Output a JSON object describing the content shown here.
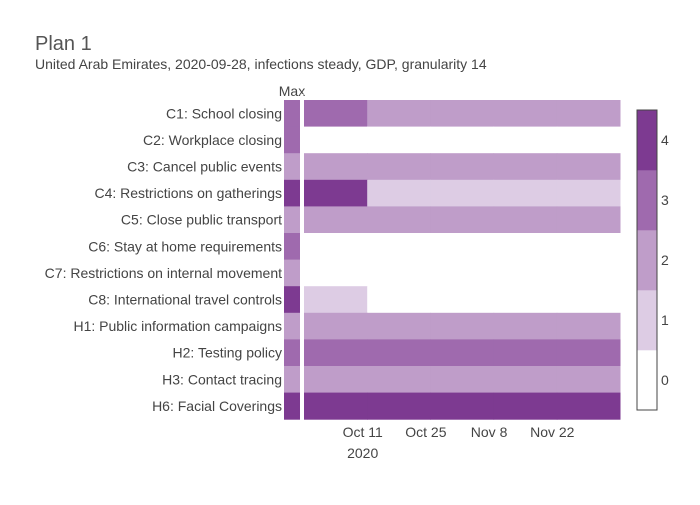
{
  "title": "Plan 1",
  "subtitle": "United Arab Emirates, 2020-09-28, infections steady, GDP, granularity 14",
  "max_label": "Max",
  "chart_data": {
    "type": "heatmap",
    "title": "Plan 1",
    "subtitle": "United Arab Emirates, 2020-09-28, infections steady, GDP, granularity 14",
    "rows": [
      "C1: School closing",
      "C2: Workplace closing",
      "C3: Cancel public events",
      "C4: Restrictions on gatherings",
      "C5: Close public transport",
      "C6: Stay at home requirements",
      "C7: Restrictions on internal movement",
      "C8: International travel controls",
      "H1: Public information campaigns",
      "H2: Testing policy",
      "H3: Contact tracing",
      "H6: Facial Coverings"
    ],
    "max_values": [
      3,
      3,
      2,
      4,
      2,
      3,
      2,
      4,
      2,
      3,
      2,
      4
    ],
    "period_starts": [
      "2020-09-28",
      "2020-10-12",
      "2020-10-26",
      "2020-11-09",
      "2020-11-23"
    ],
    "period_end": "2020-12-07",
    "values": [
      [
        3,
        2,
        2,
        2,
        2
      ],
      [
        0,
        0,
        0,
        0,
        0
      ],
      [
        2,
        2,
        2,
        2,
        2
      ],
      [
        4,
        1,
        1,
        1,
        1
      ],
      [
        2,
        2,
        2,
        2,
        2
      ],
      [
        0,
        0,
        0,
        0,
        0
      ],
      [
        0,
        0,
        0,
        0,
        0
      ],
      [
        1,
        0,
        0,
        0,
        0
      ],
      [
        2,
        2,
        2,
        2,
        2
      ],
      [
        3,
        3,
        3,
        3,
        3
      ],
      [
        2,
        2,
        2,
        2,
        2
      ],
      [
        4,
        4,
        4,
        4,
        4
      ]
    ],
    "x_ticks": [
      {
        "date": "2020-10-11",
        "label": "Oct 11"
      },
      {
        "date": "2020-10-25",
        "label": "Oct 25"
      },
      {
        "date": "2020-11-08",
        "label": "Nov 8"
      },
      {
        "date": "2020-11-22",
        "label": "Nov 22"
      }
    ],
    "x_year_label": "2020",
    "colorscale": {
      "levels": [
        0,
        1,
        2,
        3,
        4
      ],
      "colors": [
        "#ffffff",
        "#ddcce4",
        "#bf9dc9",
        "#9f6aae",
        "#7d3a91"
      ]
    },
    "colorbar_ticks": [
      "0",
      "1",
      "2",
      "3",
      "4"
    ]
  }
}
